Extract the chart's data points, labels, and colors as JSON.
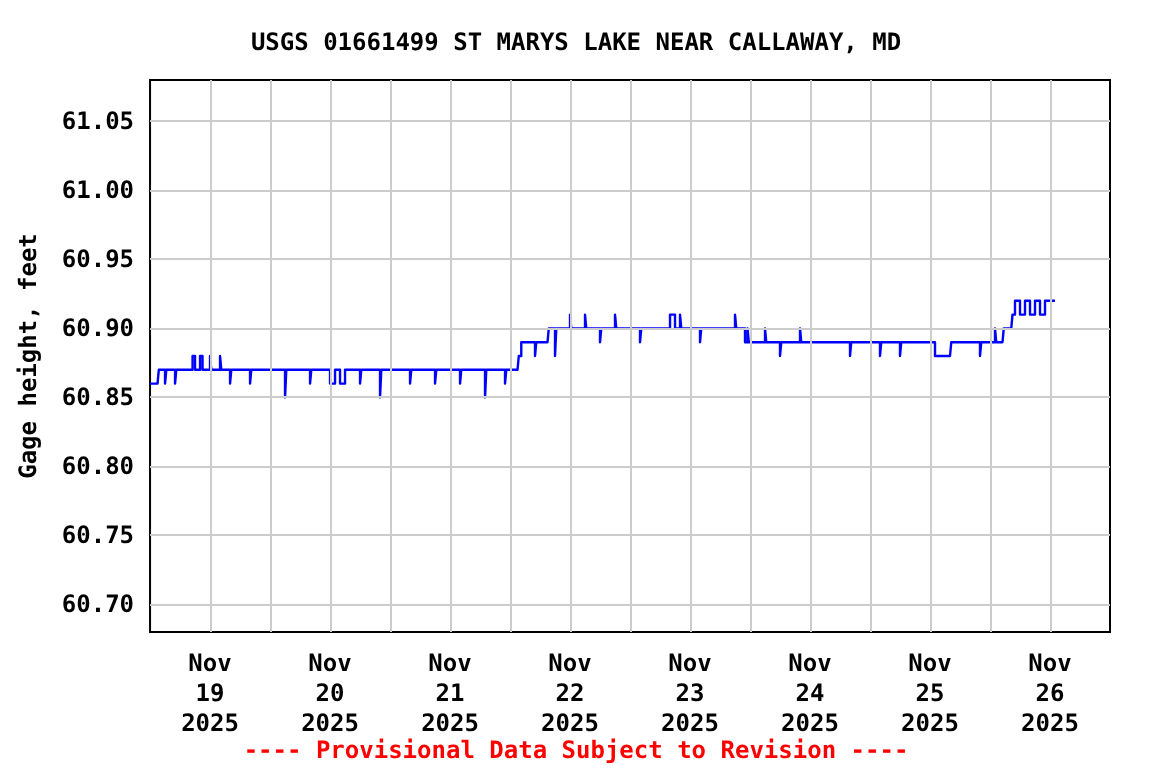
{
  "chart_data": {
    "type": "step",
    "title": "USGS 01661499 ST MARYS LAKE NEAR CALLAWAY, MD",
    "ylabel": "Gage height, feet",
    "annotations": [
      "---- Provisional Data Subject to Revision ----"
    ],
    "xlim": [
      "2025-11-19T00:00",
      "2025-11-27T00:00"
    ],
    "xticks": [
      {
        "value": "2025-11-19T12:00",
        "label": "Nov\n19\n2025"
      },
      {
        "value": "2025-11-20T00:00",
        "label": null
      },
      {
        "value": "2025-11-20T12:00",
        "label": "Nov\n20\n2025"
      },
      {
        "value": "2025-11-21T00:00",
        "label": null
      },
      {
        "value": "2025-11-21T12:00",
        "label": "Nov\n21\n2025"
      },
      {
        "value": "2025-11-22T00:00",
        "label": null
      },
      {
        "value": "2025-11-22T12:00",
        "label": "Nov\n22\n2025"
      },
      {
        "value": "2025-11-23T00:00",
        "label": null
      },
      {
        "value": "2025-11-23T12:00",
        "label": "Nov\n23\n2025"
      },
      {
        "value": "2025-11-24T00:00",
        "label": null
      },
      {
        "value": "2025-11-24T12:00",
        "label": "Nov\n24\n2025"
      },
      {
        "value": "2025-11-25T00:00",
        "label": null
      },
      {
        "value": "2025-11-25T12:00",
        "label": "Nov\n25\n2025"
      },
      {
        "value": "2025-11-26T00:00",
        "label": null
      },
      {
        "value": "2025-11-26T12:00",
        "label": "Nov\n26\n2025"
      }
    ],
    "ylim": [
      60.68,
      61.08
    ],
    "yticks": [
      {
        "value": 60.7,
        "label": "60.70"
      },
      {
        "value": 60.75,
        "label": "60.75"
      },
      {
        "value": 60.8,
        "label": "60.80"
      },
      {
        "value": 60.85,
        "label": "60.85"
      },
      {
        "value": 60.9,
        "label": "60.90"
      },
      {
        "value": 60.95,
        "label": "60.95"
      },
      {
        "value": 61.0,
        "label": "61.00"
      },
      {
        "value": 61.05,
        "label": "61.05"
      }
    ],
    "grid": true,
    "marker": "none",
    "line_style": "solid",
    "series": [
      {
        "color": "#0000ff",
        "x": [
          "2025-11-19T00:00",
          "2025-11-19T01:30",
          "2025-11-19T01:45",
          "2025-11-19T03:00",
          "2025-11-19T03:15",
          "2025-11-19T05:00",
          "2025-11-19T05:15",
          "2025-11-19T08:30",
          "2025-11-19T09:00",
          "2025-11-19T10:00",
          "2025-11-19T10:30",
          "2025-11-19T12:00",
          "2025-11-19T12:15",
          "2025-11-19T14:00",
          "2025-11-19T14:15",
          "2025-11-19T16:00",
          "2025-11-19T16:15",
          "2025-11-19T20:00",
          "2025-11-19T20:15",
          "2025-11-20T03:00",
          "2025-11-20T03:15",
          "2025-11-20T08:00",
          "2025-11-20T08:15",
          "2025-11-20T12:00",
          "2025-11-20T13:00",
          "2025-11-20T14:00",
          "2025-11-20T15:00",
          "2025-11-20T18:00",
          "2025-11-20T18:15",
          "2025-11-20T22:00",
          "2025-11-20T22:15",
          "2025-11-21T04:00",
          "2025-11-21T04:15",
          "2025-11-21T09:00",
          "2025-11-21T09:15",
          "2025-11-21T14:00",
          "2025-11-21T14:15",
          "2025-11-21T19:00",
          "2025-11-21T19:15",
          "2025-11-21T23:00",
          "2025-11-21T23:15",
          "2025-11-22T01:30",
          "2025-11-22T01:45",
          "2025-11-22T02:15",
          "2025-11-22T05:00",
          "2025-11-22T05:15",
          "2025-11-22T07:30",
          "2025-11-22T07:45",
          "2025-11-22T09:00",
          "2025-11-22T09:15",
          "2025-11-22T12:00",
          "2025-11-22T12:15",
          "2025-11-22T15:00",
          "2025-11-22T15:15",
          "2025-11-22T18:00",
          "2025-11-22T18:15",
          "2025-11-22T21:00",
          "2025-11-22T21:15",
          "2025-11-23T02:00",
          "2025-11-23T02:15",
          "2025-11-23T08:00",
          "2025-11-23T09:00",
          "2025-11-23T10:00",
          "2025-11-23T10:15",
          "2025-11-23T14:00",
          "2025-11-23T14:15",
          "2025-11-23T21:00",
          "2025-11-23T21:15",
          "2025-11-23T23:00",
          "2025-11-23T23:30",
          "2025-11-23T23:45",
          "2025-11-24T03:00",
          "2025-11-24T03:15",
          "2025-11-24T06:00",
          "2025-11-24T06:15",
          "2025-11-24T10:00",
          "2025-11-24T10:15",
          "2025-11-24T15:00",
          "2025-11-24T20:00",
          "2025-11-24T20:15",
          "2025-11-25T02:00",
          "2025-11-25T02:15",
          "2025-11-25T06:00",
          "2025-11-25T06:15",
          "2025-11-25T13:00",
          "2025-11-25T16:00",
          "2025-11-25T16:15",
          "2025-11-25T22:00",
          "2025-11-25T22:15",
          "2025-11-26T01:00",
          "2025-11-26T01:15",
          "2025-11-26T02:30",
          "2025-11-26T02:45",
          "2025-11-26T04:15",
          "2025-11-26T04:30",
          "2025-11-26T05:00",
          "2025-11-26T06:00",
          "2025-11-26T07:00",
          "2025-11-26T08:00",
          "2025-11-26T09:00",
          "2025-11-26T10:00",
          "2025-11-26T11:00",
          "2025-11-26T13:00"
        ],
        "values": [
          60.86,
          60.86,
          60.87,
          60.86,
          60.87,
          60.86,
          60.87,
          60.88,
          60.87,
          60.88,
          60.87,
          60.88,
          60.87,
          60.88,
          60.87,
          60.86,
          60.87,
          60.86,
          60.87,
          60.85,
          60.87,
          60.86,
          60.87,
          60.86,
          60.87,
          60.86,
          60.87,
          60.86,
          60.87,
          60.85,
          60.87,
          60.86,
          60.87,
          60.86,
          60.87,
          60.86,
          60.87,
          60.85,
          60.87,
          60.86,
          60.87,
          60.87,
          60.88,
          60.89,
          60.88,
          60.89,
          60.89,
          60.9,
          60.88,
          60.9,
          60.91,
          60.9,
          60.91,
          60.9,
          60.89,
          60.9,
          60.91,
          60.9,
          60.89,
          60.9,
          60.91,
          60.9,
          60.91,
          60.9,
          60.89,
          60.9,
          60.91,
          60.9,
          60.89,
          60.9,
          60.89,
          60.9,
          60.89,
          60.88,
          60.89,
          60.9,
          60.89,
          60.89,
          60.88,
          60.89,
          60.88,
          60.89,
          60.88,
          60.89,
          60.88,
          60.88,
          60.89,
          60.88,
          60.89,
          60.9,
          60.89,
          60.89,
          60.9,
          60.9,
          60.91,
          60.92,
          60.91,
          60.92,
          60.91,
          60.92,
          60.91,
          60.92,
          60.92
        ]
      }
    ]
  }
}
